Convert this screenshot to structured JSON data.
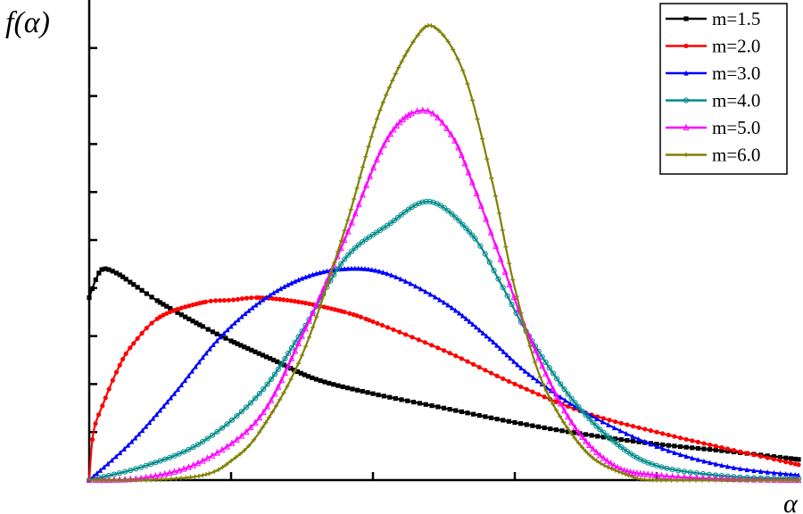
{
  "chart_data": {
    "type": "line",
    "ylabel": "f(α)",
    "xlabel": "α",
    "xlim": [
      0,
      5
    ],
    "ylim": [
      0,
      1.0
    ],
    "x_major_ticks": 5,
    "y_major_ticks": 10,
    "tick_labels_shown": false,
    "grid": false,
    "legend_position": "top-right",
    "series": [
      {
        "name": "m=1.5",
        "color": "#000000",
        "marker": "square",
        "x": [
          0,
          0.05,
          0.1,
          0.2,
          0.3,
          0.5,
          0.8,
          1.0,
          1.3,
          1.6,
          2.0,
          2.5,
          3.0,
          3.5,
          4.0,
          4.5,
          5.0
        ],
        "y": [
          0.38,
          0.42,
          0.44,
          0.43,
          0.41,
          0.37,
          0.32,
          0.29,
          0.25,
          0.21,
          0.18,
          0.15,
          0.12,
          0.095,
          0.075,
          0.06,
          0.043
        ]
      },
      {
        "name": "m=2.0",
        "color": "#ff0000",
        "marker": "circle",
        "x": [
          0,
          0.03,
          0.1,
          0.2,
          0.3,
          0.5,
          0.8,
          1.0,
          1.2,
          1.5,
          1.8,
          2.0,
          2.5,
          3.0,
          3.5,
          4.0,
          4.5,
          5.0
        ],
        "y": [
          0.0,
          0.1,
          0.16,
          0.23,
          0.28,
          0.34,
          0.37,
          0.375,
          0.38,
          0.37,
          0.35,
          0.33,
          0.27,
          0.2,
          0.14,
          0.1,
          0.065,
          0.032
        ]
      },
      {
        "name": "m=3.0",
        "color": "#0000ff",
        "marker": "triangle-up",
        "x": [
          0,
          0.3,
          0.6,
          0.9,
          1.2,
          1.5,
          1.8,
          2.1,
          2.5,
          2.8,
          3.1,
          3.5,
          4.0,
          4.5,
          5.0
        ],
        "y": [
          0.0,
          0.08,
          0.18,
          0.29,
          0.37,
          0.42,
          0.44,
          0.43,
          0.37,
          0.3,
          0.22,
          0.14,
          0.07,
          0.028,
          0.01
        ]
      },
      {
        "name": "m=4.0",
        "color": "#008b8b",
        "marker": "circle-open",
        "x": [
          0,
          0.4,
          0.8,
          1.2,
          1.5,
          1.8,
          2.1,
          2.4,
          2.7,
          2.9,
          3.1,
          3.4,
          3.7,
          4.0,
          4.5,
          5.0
        ],
        "y": [
          0.0,
          0.03,
          0.08,
          0.18,
          0.31,
          0.46,
          0.53,
          0.58,
          0.51,
          0.41,
          0.3,
          0.17,
          0.08,
          0.03,
          0.008,
          0.003
        ]
      },
      {
        "name": "m=5.0",
        "color": "#ff00ff",
        "marker": "triangle-open",
        "x": [
          0,
          0.4,
          0.8,
          1.2,
          1.5,
          1.8,
          2.1,
          2.35,
          2.55,
          2.7,
          2.9,
          3.1,
          3.4,
          3.7,
          4.0,
          4.5,
          5.0
        ],
        "y": [
          0.0,
          0.005,
          0.04,
          0.13,
          0.3,
          0.5,
          0.71,
          0.77,
          0.72,
          0.62,
          0.46,
          0.3,
          0.12,
          0.03,
          0.01,
          0.002,
          0.0
        ]
      },
      {
        "name": "m=6.0",
        "color": "#808000",
        "marker": "plus",
        "x": [
          0,
          0.4,
          0.8,
          1.0,
          1.2,
          1.5,
          1.8,
          2.05,
          2.3,
          2.45,
          2.65,
          2.85,
          3.0,
          3.2,
          3.5,
          3.8,
          4.0,
          4.5,
          5.0
        ],
        "y": [
          0.0,
          0.0,
          0.01,
          0.04,
          0.1,
          0.26,
          0.52,
          0.77,
          0.92,
          0.94,
          0.84,
          0.61,
          0.4,
          0.2,
          0.06,
          0.01,
          0.0,
          0.0,
          0.0
        ]
      }
    ]
  }
}
